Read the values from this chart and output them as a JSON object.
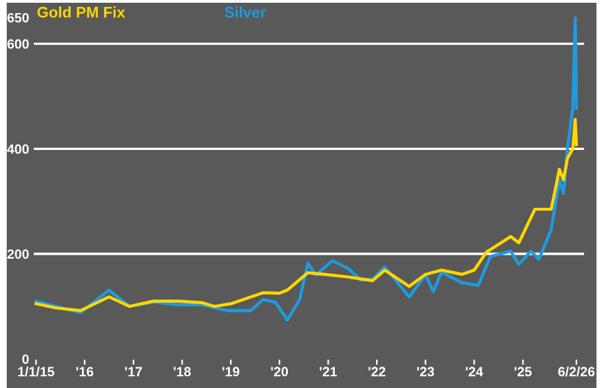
{
  "chart_data": {
    "type": "line",
    "x": [
      "2015-01-01",
      "2015-06-01",
      "2015-12-01",
      "2016-07-01",
      "2016-12-01",
      "2017-06-01",
      "2017-12-01",
      "2018-06-01",
      "2018-09-01",
      "2019-01-01",
      "2019-06-01",
      "2019-09-01",
      "2020-01-01",
      "2020-03-01",
      "2020-08-01",
      "2020-12-01",
      "2021-06-01",
      "2021-12-01",
      "2022-03-01",
      "2022-09-01",
      "2023-01-01",
      "2023-05-01",
      "2023-10-01",
      "2024-01-01",
      "2024-04-01",
      "2024-10-01",
      "2024-12-01",
      "2025-04-01",
      "2025-08-01",
      "2025-09-01",
      "2025-10-01",
      "2025-11-01",
      "2025-12-01",
      "2026-01-10",
      "2026-01-28",
      "2026-02-06"
    ],
    "series": [
      {
        "name": "Gold PM Fix",
        "color": "#ffd700",
        "values": [
          105,
          97,
          92,
          118,
          100,
          110,
          110,
          107,
          100,
          105,
          118,
          126,
          125,
          131,
          164,
          161,
          156,
          149,
          169,
          138,
          161,
          169,
          161,
          169,
          203,
          233,
          221,
          285,
          285,
          323,
          361,
          341,
          382,
          400,
          456,
          408
        ]
      },
      {
        "name": "Silver",
        "color": "#1e9be0",
        "x": [
          "2015-01-01",
          "2015-06-01",
          "2015-12-01",
          "2016-07-01",
          "2016-12-01",
          "2017-06-01",
          "2017-12-01",
          "2018-06-01",
          "2018-12-01",
          "2019-06-01",
          "2019-09-01",
          "2019-12-01",
          "2020-03-01",
          "2020-06-01",
          "2020-08-01",
          "2020-10-01",
          "2021-02-01",
          "2021-06-01",
          "2021-09-01",
          "2021-12-01",
          "2022-03-01",
          "2022-09-01",
          "2023-01-01",
          "2023-03-01",
          "2023-05-01",
          "2023-10-01",
          "2024-02-01",
          "2024-05-01",
          "2024-10-01",
          "2024-12-01",
          "2025-03-01",
          "2025-05-01",
          "2025-08-01",
          "2025-10-01",
          "2025-11-01",
          "2025-12-01",
          "2026-01-10",
          "2026-01-28",
          "2026-02-02",
          "2026-02-06"
        ],
        "values": [
          110,
          100,
          88,
          131,
          100,
          108,
          103,
          103,
          92,
          92,
          113,
          108,
          74,
          113,
          182,
          160,
          187,
          172,
          150,
          152,
          175,
          118,
          160,
          128,
          165,
          145,
          140,
          195,
          205,
          180,
          205,
          190,
          246,
          341,
          315,
          400,
          477,
          649,
          580,
          477
        ]
      }
    ],
    "xlim": [
      "2014-12-10",
      "2026-04-10"
    ],
    "xticks": [
      {
        "value": "2015-01-01",
        "label": "1/1/15"
      },
      {
        "value": "2016-01-01",
        "label": "'16"
      },
      {
        "value": "2017-01-01",
        "label": "'17"
      },
      {
        "value": "2018-01-01",
        "label": "'18"
      },
      {
        "value": "2019-01-01",
        "label": "'19"
      },
      {
        "value": "2020-01-01",
        "label": "'20"
      },
      {
        "value": "2021-01-01",
        "label": "'21"
      },
      {
        "value": "2022-01-01",
        "label": "'22"
      },
      {
        "value": "2023-01-01",
        "label": "'23"
      },
      {
        "value": "2024-01-01",
        "label": "'24"
      },
      {
        "value": "2025-01-01",
        "label": "'25"
      },
      {
        "value": "2026-02-06",
        "label": "6/2/26"
      }
    ],
    "ylim": [
      0,
      670
    ],
    "yticks": [
      0,
      200,
      400,
      600,
      650
    ],
    "ref_lines": [
      {
        "axis": "y",
        "value": 200,
        "color": "#ffffff"
      },
      {
        "axis": "y",
        "value": 400,
        "color": "#ffffff"
      },
      {
        "axis": "y",
        "value": 600,
        "color": "#ffffff"
      }
    ],
    "grid": false,
    "line_style": "solid",
    "marker": "none"
  }
}
